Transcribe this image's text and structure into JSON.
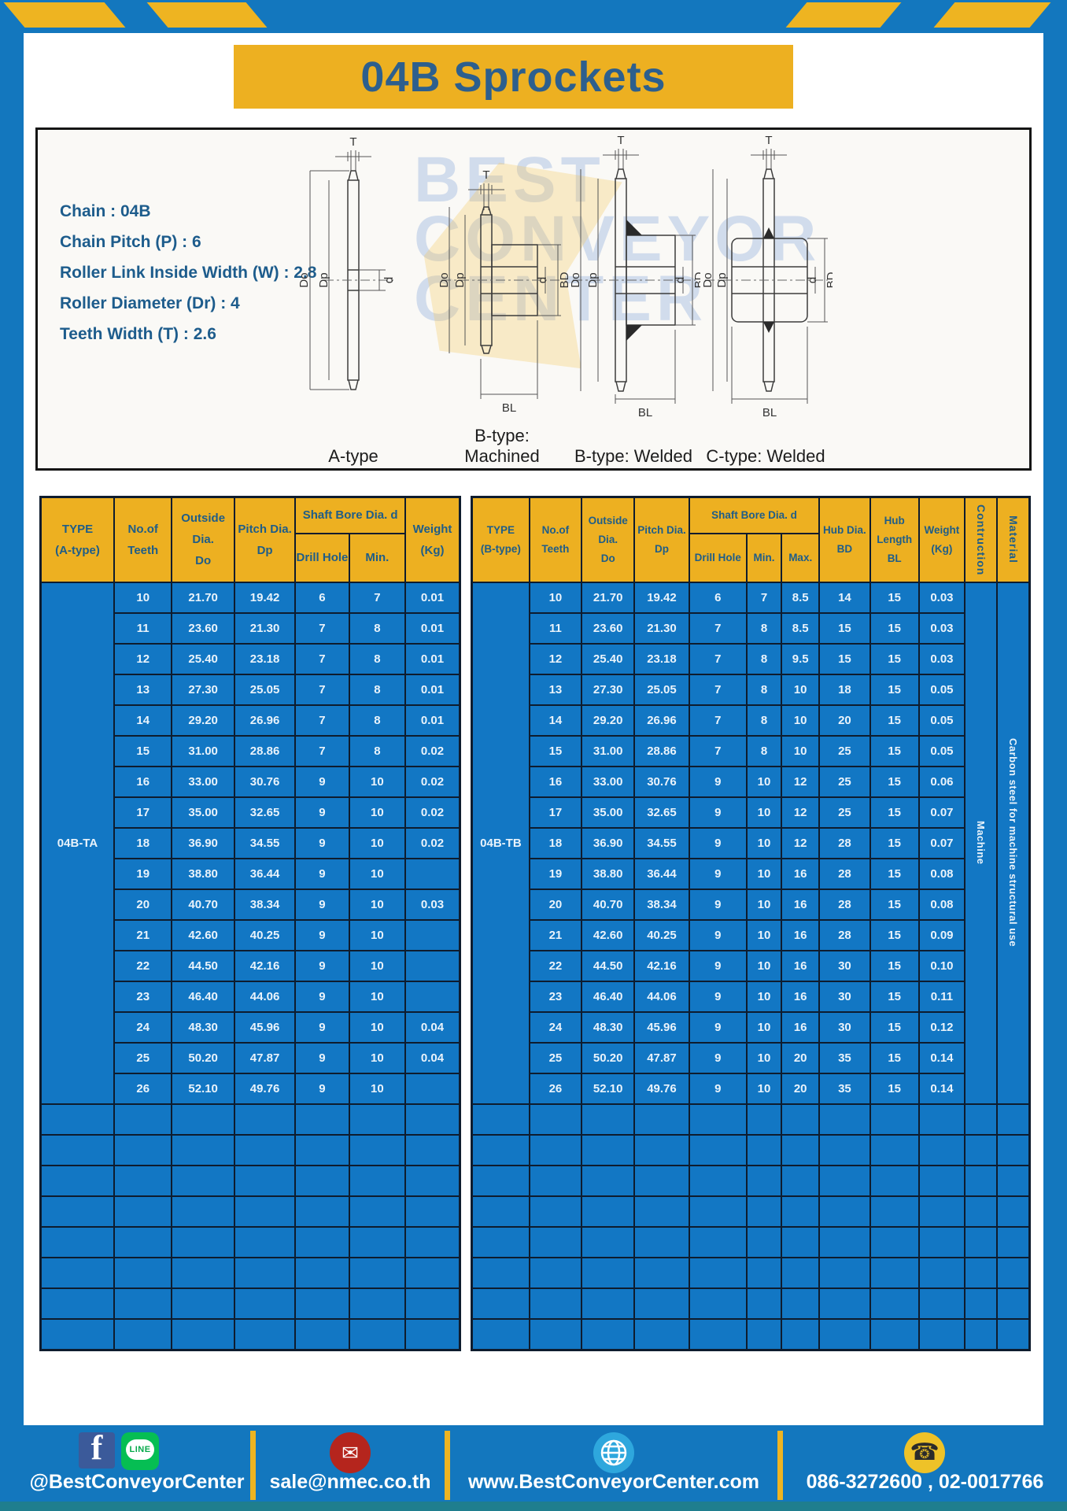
{
  "page": {
    "title": "04B Sprockets"
  },
  "specs": {
    "lines": [
      "Chain : 04B",
      "Chain Pitch (P) : 6",
      "Roller Link Inside Width (W) : 2.8",
      "Roller Diameter (Dr) : 4",
      "Teeth Width (T) : 2.6"
    ]
  },
  "watermark": {
    "line1": "BEST",
    "line2": "CONVEYOR",
    "line3": "CENTER"
  },
  "diagrams": [
    {
      "caption": "A-type",
      "dims": {
        "t": "T",
        "do": "Do",
        "dp": "Dp",
        "d": "d"
      }
    },
    {
      "caption": "B-type: Machined",
      "dims": {
        "t": "T",
        "do": "Do",
        "dp": "Dp",
        "d": "d",
        "bd": "BD",
        "bl": "BL"
      }
    },
    {
      "caption": "B-type: Welded",
      "dims": {
        "t": "T",
        "do": "Do",
        "dp": "Dp",
        "d": "d",
        "bd": "BD",
        "bl": "BL"
      }
    },
    {
      "caption": "C-type: Welded",
      "dims": {
        "t": "T",
        "do": "Do",
        "dp": "Dp",
        "d": "d",
        "bd": "BD",
        "bl": "BL"
      }
    }
  ],
  "table_a": {
    "headers": {
      "type": "TYPE\n(A-type)",
      "teeth": "No.of\nTeeth",
      "outside": "Outside\nDia.\nDo",
      "pitch": "Pitch Dia.\nDp",
      "shaft": "Shaft Bore Dia. d",
      "drill": "Drill Hole",
      "min": "Min.",
      "weight": "Weight\n(Kg)"
    },
    "type_value": "04B-TA",
    "rows": [
      [
        "10",
        "21.70",
        "19.42",
        "6",
        "7",
        "0.01"
      ],
      [
        "11",
        "23.60",
        "21.30",
        "7",
        "8",
        "0.01"
      ],
      [
        "12",
        "25.40",
        "23.18",
        "7",
        "8",
        "0.01"
      ],
      [
        "13",
        "27.30",
        "25.05",
        "7",
        "8",
        "0.01"
      ],
      [
        "14",
        "29.20",
        "26.96",
        "7",
        "8",
        "0.01"
      ],
      [
        "15",
        "31.00",
        "28.86",
        "7",
        "8",
        "0.02"
      ],
      [
        "16",
        "33.00",
        "30.76",
        "9",
        "10",
        "0.02"
      ],
      [
        "17",
        "35.00",
        "32.65",
        "9",
        "10",
        "0.02"
      ],
      [
        "18",
        "36.90",
        "34.55",
        "9",
        "10",
        "0.02"
      ],
      [
        "19",
        "38.80",
        "36.44",
        "9",
        "10",
        ""
      ],
      [
        "20",
        "40.70",
        "38.34",
        "9",
        "10",
        "0.03"
      ],
      [
        "21",
        "42.60",
        "40.25",
        "9",
        "10",
        ""
      ],
      [
        "22",
        "44.50",
        "42.16",
        "9",
        "10",
        ""
      ],
      [
        "23",
        "46.40",
        "44.06",
        "9",
        "10",
        ""
      ],
      [
        "24",
        "48.30",
        "45.96",
        "9",
        "10",
        "0.04"
      ],
      [
        "25",
        "50.20",
        "47.87",
        "9",
        "10",
        "0.04"
      ],
      [
        "26",
        "52.10",
        "49.76",
        "9",
        "10",
        ""
      ]
    ],
    "empty_rows": 8
  },
  "table_b": {
    "headers": {
      "type": "TYPE\n(B-type)",
      "teeth": "No.of\nTeeth",
      "outside": "Outside\nDia.\nDo",
      "pitch": "Pitch Dia.\nDp",
      "shaft": "Shaft Bore Dia. d",
      "drill": "Drill Hole",
      "min": "Min.",
      "max": "Max.",
      "hub_dia": "Hub Dia.\nBD",
      "hub_len": "Hub\nLength\nBL",
      "weight": "Weight\n(Kg)",
      "construction": "Contruction",
      "material": "Material"
    },
    "type_value": "04B-TB",
    "construction_value": "Machine",
    "material_value": "Carbon steel for machine structural use",
    "rows": [
      [
        "10",
        "21.70",
        "19.42",
        "6",
        "7",
        "8.5",
        "14",
        "15",
        "0.03"
      ],
      [
        "11",
        "23.60",
        "21.30",
        "7",
        "8",
        "8.5",
        "15",
        "15",
        "0.03"
      ],
      [
        "12",
        "25.40",
        "23.18",
        "7",
        "8",
        "9.5",
        "15",
        "15",
        "0.03"
      ],
      [
        "13",
        "27.30",
        "25.05",
        "7",
        "8",
        "10",
        "18",
        "15",
        "0.05"
      ],
      [
        "14",
        "29.20",
        "26.96",
        "7",
        "8",
        "10",
        "20",
        "15",
        "0.05"
      ],
      [
        "15",
        "31.00",
        "28.86",
        "7",
        "8",
        "10",
        "25",
        "15",
        "0.05"
      ],
      [
        "16",
        "33.00",
        "30.76",
        "9",
        "10",
        "12",
        "25",
        "15",
        "0.06"
      ],
      [
        "17",
        "35.00",
        "32.65",
        "9",
        "10",
        "12",
        "25",
        "15",
        "0.07"
      ],
      [
        "18",
        "36.90",
        "34.55",
        "9",
        "10",
        "12",
        "28",
        "15",
        "0.07"
      ],
      [
        "19",
        "38.80",
        "36.44",
        "9",
        "10",
        "16",
        "28",
        "15",
        "0.08"
      ],
      [
        "20",
        "40.70",
        "38.34",
        "9",
        "10",
        "16",
        "28",
        "15",
        "0.08"
      ],
      [
        "21",
        "42.60",
        "40.25",
        "9",
        "10",
        "16",
        "28",
        "15",
        "0.09"
      ],
      [
        "22",
        "44.50",
        "42.16",
        "9",
        "10",
        "16",
        "30",
        "15",
        "0.10"
      ],
      [
        "23",
        "46.40",
        "44.06",
        "9",
        "10",
        "16",
        "30",
        "15",
        "0.11"
      ],
      [
        "24",
        "48.30",
        "45.96",
        "9",
        "10",
        "16",
        "30",
        "15",
        "0.12"
      ],
      [
        "25",
        "50.20",
        "47.87",
        "9",
        "10",
        "20",
        "35",
        "15",
        "0.14"
      ],
      [
        "26",
        "52.10",
        "49.76",
        "9",
        "10",
        "20",
        "35",
        "15",
        "0.14"
      ]
    ],
    "empty_rows": 8
  },
  "footer": {
    "social_text": "@BestConveyorCenter",
    "line_label": "LINE",
    "facebook_letter": "f",
    "email_text": "sale@nmec.co.th",
    "web_text": "www.BestConveyorCenter.com",
    "phone_text": "086-3272600 , 02-0017766"
  },
  "colors": {
    "frame_blue": "#1377be",
    "accent_yellow": "#eeb421",
    "header_yellow": "#edb021",
    "table_blue": "#1277c4",
    "navy_border": "#0e1c2e",
    "title_blue": "#2d5f8d",
    "footer_teal_strip": "#1f7e8e",
    "facebook_blue": "#3b5a9a",
    "line_green": "#06be53",
    "mail_red": "#b5251d",
    "globe_blue": "#2ea7dd",
    "phone_yellow": "#eec228"
  }
}
